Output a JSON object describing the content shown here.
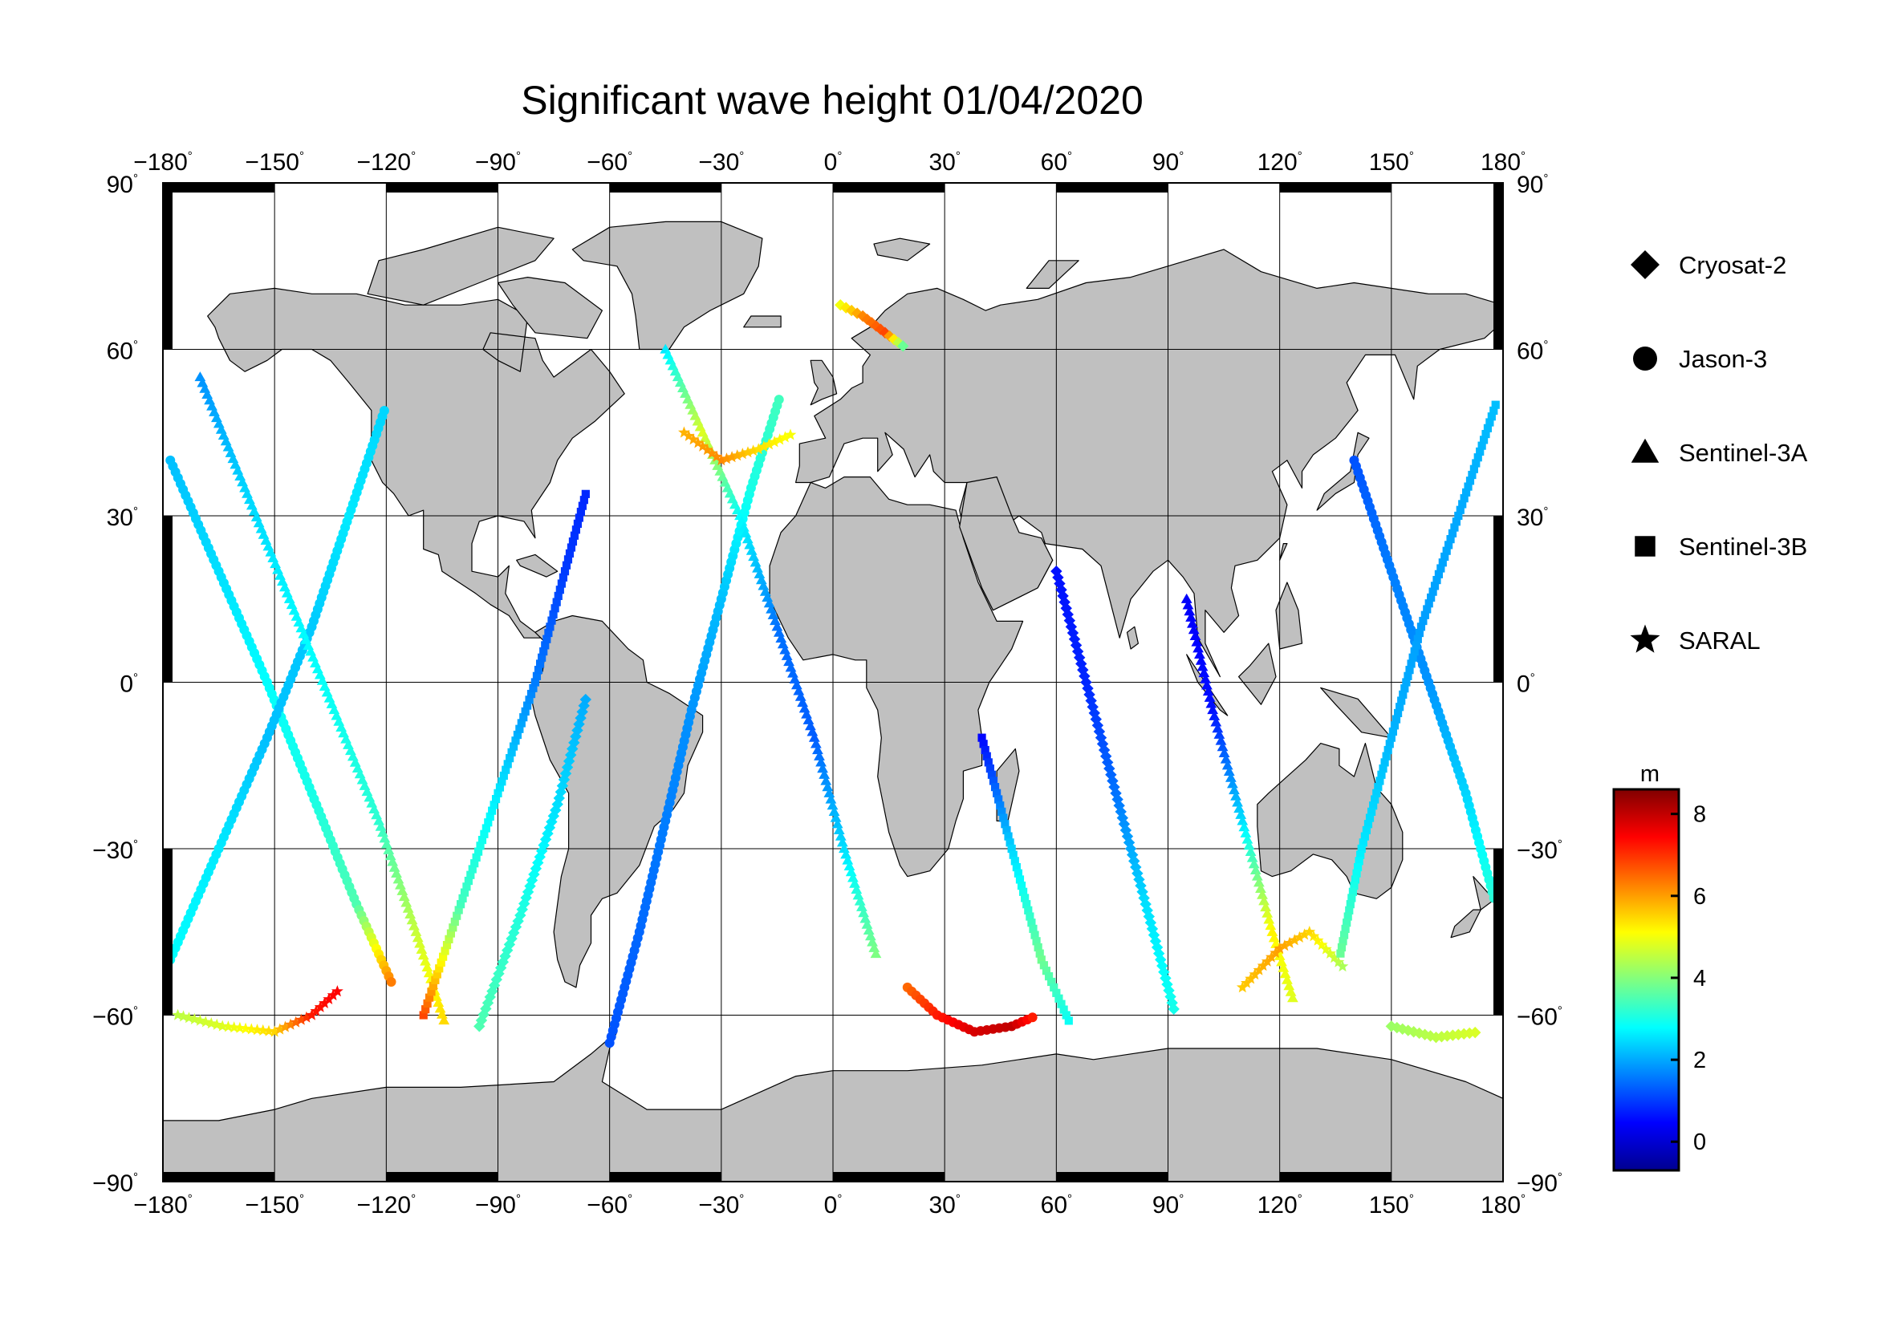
{
  "title": "Significant wave height 01/04/2020",
  "map": {
    "projection": "equirectangular",
    "lon_range": [
      -180,
      180
    ],
    "lat_range": [
      -90,
      90
    ],
    "graticule_step": 30,
    "land_color": "#c0c0c0",
    "ocean_color": "#ffffff",
    "x_ticks": [
      {
        "value": -180,
        "label": "−180"
      },
      {
        "value": -150,
        "label": "−150"
      },
      {
        "value": -120,
        "label": "−120"
      },
      {
        "value": -90,
        "label": "−90"
      },
      {
        "value": -60,
        "label": "−60"
      },
      {
        "value": -30,
        "label": "−30"
      },
      {
        "value": 0,
        "label": "0"
      },
      {
        "value": 30,
        "label": "30"
      },
      {
        "value": 60,
        "label": "60"
      },
      {
        "value": 90,
        "label": "90"
      },
      {
        "value": 120,
        "label": "120"
      },
      {
        "value": 150,
        "label": "150"
      },
      {
        "value": 180,
        "label": "180"
      }
    ],
    "y_ticks": [
      {
        "value": 90,
        "label": "90"
      },
      {
        "value": 60,
        "label": "60"
      },
      {
        "value": 30,
        "label": "30"
      },
      {
        "value": 0,
        "label": "0"
      },
      {
        "value": -30,
        "label": "−30"
      },
      {
        "value": -60,
        "label": "−60"
      },
      {
        "value": -90,
        "label": "−90"
      }
    ],
    "degree_mark": "°"
  },
  "legend": [
    {
      "name": "Cryosat-2",
      "marker": "diamond"
    },
    {
      "name": "Jason-3",
      "marker": "circle"
    },
    {
      "name": "Sentinel-3A",
      "marker": "triangle"
    },
    {
      "name": "Sentinel-3B",
      "marker": "square"
    },
    {
      "name": "SARAL",
      "marker": "star"
    }
  ],
  "colorbar": {
    "unit": "m",
    "range": [
      -0.7,
      8.6
    ],
    "ticks": [
      {
        "value": 0,
        "label": "0"
      },
      {
        "value": 2,
        "label": "2"
      },
      {
        "value": 4,
        "label": "4"
      },
      {
        "value": 6,
        "label": "6"
      },
      {
        "value": 8,
        "label": "8"
      }
    ],
    "colormap": [
      "#00008f",
      "#0000ff",
      "#0080ff",
      "#00ffff",
      "#80ff80",
      "#ffff00",
      "#ff8000",
      "#ff0000",
      "#800000"
    ]
  },
  "chart_data": {
    "type": "scatter",
    "title": "Significant wave height 01/04/2020",
    "xlabel": "",
    "ylabel": "",
    "xlim": [
      -180,
      180
    ],
    "ylim": [
      -90,
      90
    ],
    "color_variable": "m",
    "tracks": [
      {
        "satellite": "Jason-3",
        "path": [
          [
            -178,
            40,
            2.2
          ],
          [
            -165,
            20,
            2.5
          ],
          [
            -152,
            0,
            2.8
          ],
          [
            -140,
            -20,
            3.0
          ],
          [
            -128,
            -40,
            3.5
          ],
          [
            -118,
            -55,
            6.5
          ]
        ]
      },
      {
        "satellite": "Jason-3",
        "path": [
          [
            -178,
            -50,
            2.8
          ],
          [
            -165,
            -30,
            2.6
          ],
          [
            -152,
            -10,
            2.2
          ],
          [
            -140,
            10,
            2.3
          ],
          [
            -130,
            30,
            2.6
          ],
          [
            -120,
            50,
            2.4
          ]
        ]
      },
      {
        "satellite": "Sentinel-3A",
        "path": [
          [
            -170,
            55,
            1.8
          ],
          [
            -158,
            35,
            2.4
          ],
          [
            -146,
            15,
            2.7
          ],
          [
            -134,
            -5,
            2.9
          ],
          [
            -122,
            -25,
            3.2
          ],
          [
            -112,
            -45,
            4.6
          ],
          [
            -104,
            -62,
            5.5
          ]
        ]
      },
      {
        "satellite": "SARAL",
        "path": [
          [
            -176,
            -60,
            4.5
          ],
          [
            -164,
            -62,
            4.8
          ],
          [
            -150,
            -63,
            5.5
          ],
          [
            -140,
            -60,
            7.2
          ],
          [
            -132,
            -55,
            7.5
          ]
        ]
      },
      {
        "satellite": "Sentinel-3B",
        "path": [
          [
            -110,
            -60,
            6.8
          ],
          [
            -100,
            -40,
            3.4
          ],
          [
            -90,
            -20,
            2.6
          ],
          [
            -80,
            0,
            1.6
          ],
          [
            -72,
            20,
            1.0
          ],
          [
            -66,
            35,
            0.8
          ]
        ]
      },
      {
        "satellite": "Cryosat-2",
        "path": [
          [
            -95,
            -62,
            3.5
          ],
          [
            -84,
            -42,
            3.1
          ],
          [
            -74,
            -22,
            2.5
          ],
          [
            -66,
            -2,
            2.0
          ]
        ]
      },
      {
        "satellite": "Jason-3",
        "path": [
          [
            -60,
            -65,
            1.2
          ],
          [
            -52,
            -45,
            1.4
          ],
          [
            -45,
            -25,
            1.6
          ],
          [
            -38,
            -5,
            1.8
          ],
          [
            -30,
            15,
            2.2
          ],
          [
            -22,
            35,
            3.0
          ],
          [
            -14,
            52,
            3.4
          ]
        ]
      },
      {
        "satellite": "Sentinel-3A",
        "path": [
          [
            -45,
            60,
            2.6
          ],
          [
            -35,
            45,
            4.8
          ],
          [
            -25,
            30,
            2.8
          ],
          [
            -15,
            10,
            1.5
          ],
          [
            -5,
            -10,
            1.3
          ],
          [
            3,
            -30,
            2.5
          ],
          [
            12,
            -50,
            4.0
          ]
        ]
      },
      {
        "satellite": "SARAL",
        "path": [
          [
            -40,
            45,
            5.8
          ],
          [
            -30,
            40,
            6.2
          ],
          [
            -20,
            42,
            5.4
          ],
          [
            -10,
            45,
            5.0
          ]
        ]
      },
      {
        "satellite": "Cryosat-2",
        "path": [
          [
            2,
            68,
            5.0
          ],
          [
            8,
            66,
            6.2
          ],
          [
            14,
            63,
            6.8
          ],
          [
            20,
            60,
            3.0
          ]
        ]
      },
      {
        "satellite": "Jason-3",
        "path": [
          [
            20,
            -55,
            6.5
          ],
          [
            28,
            -60,
            7.2
          ],
          [
            38,
            -63,
            7.8
          ],
          [
            48,
            -62,
            8.0
          ],
          [
            55,
            -60,
            7.0
          ]
        ]
      },
      {
        "satellite": "Sentinel-3B",
        "path": [
          [
            40,
            -10,
            0.5
          ],
          [
            48,
            -30,
            2.4
          ],
          [
            56,
            -50,
            3.8
          ],
          [
            64,
            -62,
            2.8
          ]
        ]
      },
      {
        "satellite": "Cryosat-2",
        "path": [
          [
            60,
            20,
            0.6
          ],
          [
            68,
            0,
            0.8
          ],
          [
            76,
            -20,
            1.5
          ],
          [
            84,
            -40,
            2.5
          ],
          [
            92,
            -60,
            3.0
          ]
        ]
      },
      {
        "satellite": "Sentinel-3A",
        "path": [
          [
            95,
            15,
            0.4
          ],
          [
            102,
            -5,
            0.6
          ],
          [
            110,
            -25,
            2.5
          ],
          [
            118,
            -45,
            5.2
          ],
          [
            124,
            -58,
            4.8
          ]
        ]
      },
      {
        "satellite": "SARAL",
        "path": [
          [
            110,
            -55,
            5.6
          ],
          [
            120,
            -48,
            6.0
          ],
          [
            128,
            -45,
            5.5
          ],
          [
            138,
            -52,
            4.2
          ]
        ]
      },
      {
        "satellite": "Jason-3",
        "path": [
          [
            140,
            40,
            1.2
          ],
          [
            150,
            20,
            1.6
          ],
          [
            160,
            0,
            1.8
          ],
          [
            170,
            -20,
            2.4
          ],
          [
            178,
            -40,
            3.2
          ]
        ]
      },
      {
        "satellite": "Sentinel-3B",
        "path": [
          [
            178,
            50,
            2.2
          ],
          [
            168,
            30,
            2.0
          ],
          [
            158,
            10,
            1.9
          ],
          [
            150,
            -10,
            2.1
          ],
          [
            142,
            -30,
            2.6
          ],
          [
            136,
            -50,
            3.8
          ]
        ]
      },
      {
        "satellite": "Cryosat-2",
        "path": [
          [
            150,
            -62,
            4.2
          ],
          [
            162,
            -64,
            4.5
          ],
          [
            174,
            -63,
            4.8
          ]
        ]
      }
    ]
  }
}
